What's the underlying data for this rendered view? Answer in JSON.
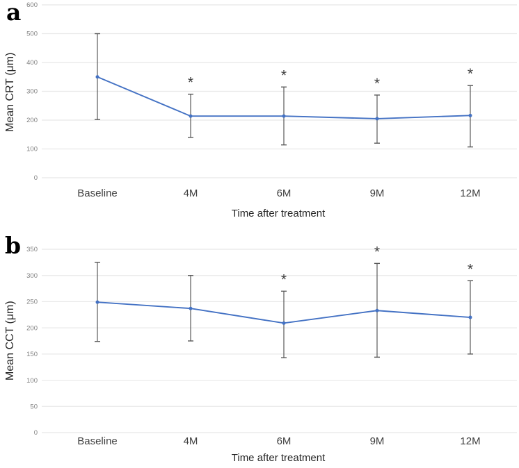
{
  "figure": {
    "background": "#FFFFFF"
  },
  "colors": {
    "line": "#4472C4",
    "marker": "#4472C4",
    "error_bar": "#595959",
    "gridline": "#E8E8E8",
    "tick_label": "#7F7F7F",
    "category_label": "#3F3F3F",
    "axis_title": "#262626",
    "panel_label": "#000000",
    "asterisk": "#404040"
  },
  "chart_data": [
    {
      "type": "line",
      "panel_label": "a",
      "title": "",
      "ylabel": "Mean CRT (μm)",
      "xlabel": "Time after treatment",
      "categories": [
        "Baseline",
        "4M",
        "6M",
        "9M",
        "12M"
      ],
      "series": [
        {
          "name": "Mean CRT",
          "values": [
            350,
            214,
            214,
            205,
            216
          ],
          "error_upper": [
            500,
            290,
            315,
            287,
            320
          ],
          "error_lower": [
            202,
            140,
            114,
            120,
            107
          ]
        }
      ],
      "significance": [
        "",
        "*",
        "*",
        "*",
        "*"
      ],
      "ylim": [
        0,
        600
      ],
      "ytick_step": 100,
      "grid": true,
      "legend": "none",
      "error_bars": true
    },
    {
      "type": "line",
      "panel_label": "b",
      "title": "",
      "ylabel": "Mean CCT (μm)",
      "xlabel": "Time after treatment",
      "categories": [
        "Baseline",
        "4M",
        "6M",
        "9M",
        "12M"
      ],
      "series": [
        {
          "name": "Mean CCT",
          "values": [
            249,
            237,
            209,
            233,
            220
          ],
          "error_upper": [
            325,
            300,
            270,
            323,
            290
          ],
          "error_lower": [
            174,
            175,
            143,
            144,
            150
          ]
        }
      ],
      "significance": [
        "",
        "",
        "*",
        "*",
        "*"
      ],
      "ylim": [
        0,
        350
      ],
      "ytick_step": 50,
      "grid": true,
      "legend": "none",
      "error_bars": true
    }
  ]
}
